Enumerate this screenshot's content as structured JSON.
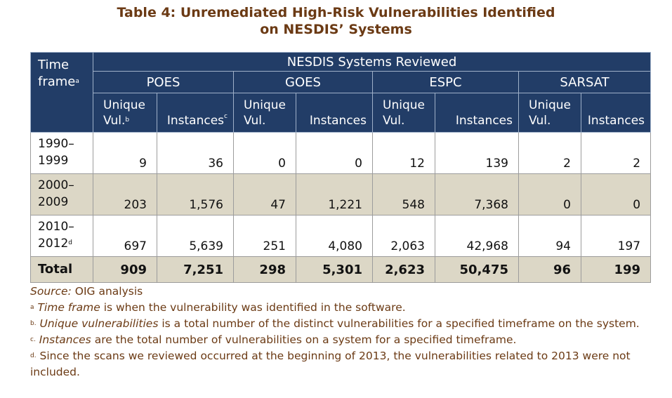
{
  "title": {
    "line1": "Table 4: Unremediated High-Risk Vulnerabilities Identified",
    "line2": "on NESDIS’ Systems"
  },
  "table": {
    "group_header": "NESDIS Systems Reviewed",
    "timeframe_header": {
      "line1": "Time",
      "line2": "frame",
      "marker": "a"
    },
    "systems": [
      "POES",
      "GOES",
      "ESPC",
      "SARSAT"
    ],
    "subheaders": {
      "unique_line1": "Unique",
      "unique_poes_line2": "Vul.",
      "unique_marker": "b",
      "unique_line2": "Vul.",
      "instances": "Instances",
      "instances_marker": "c"
    },
    "rows": [
      {
        "line1": "1990–",
        "line2": "1999",
        "marker": "",
        "values": [
          "9",
          "36",
          "0",
          "0",
          "12",
          "139",
          "2",
          "2"
        ]
      },
      {
        "line1": "2000–",
        "line2": "2009",
        "marker": "",
        "values": [
          "203",
          "1,576",
          "47",
          "1,221",
          "548",
          "7,368",
          "0",
          "0"
        ]
      },
      {
        "line1": "2010–",
        "line2": "2012",
        "marker": "d",
        "values": [
          "697",
          "5,639",
          "251",
          "4,080",
          "2,063",
          "42,968",
          "94",
          "197"
        ]
      }
    ],
    "total": {
      "label": "Total",
      "values": [
        "909",
        "7,251",
        "298",
        "5,301",
        "2,623",
        "50,475",
        "96",
        "199"
      ]
    }
  },
  "notes": {
    "source_label": "Source:",
    "source_text": " OIG analysis",
    "a_marker": "a",
    "a_term": "Time frame",
    "a_text": " is when the vulnerability was identified in the software.",
    "b_marker": "b.",
    "b_term": "Unique vulnerabilities",
    "b_text": " is a total number of the distinct vulnerabilities for a specified timeframe on the system.",
    "c_marker": "c.",
    "c_term": "Instances",
    "c_text": " are the total number of vulnerabilities on a system for a specified timeframe.",
    "d_marker": "d.",
    "d_text": " Since the scans we reviewed occurred at the beginning of 2013, the vulnerabilities related to 2013 were not included."
  },
  "colors": {
    "title": "#6b3a14",
    "header_bg": "#223d67",
    "shade_bg": "#dcd7c6"
  }
}
